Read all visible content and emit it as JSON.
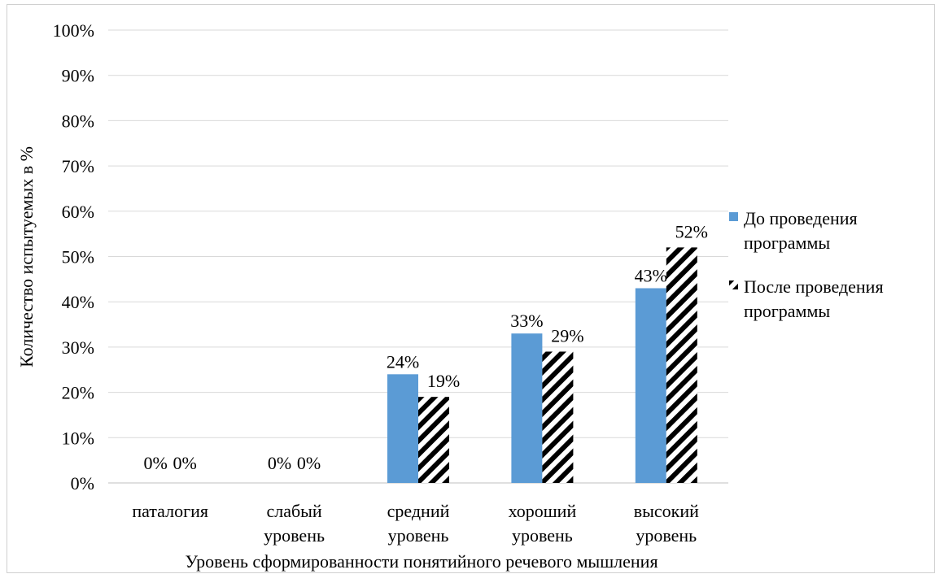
{
  "chart_data": {
    "type": "bar",
    "title": "",
    "xlabel": "Уровень сформированности понятийного речевого мышления",
    "ylabel": "Количество испытуемых в %",
    "categories": [
      [
        "паталогия"
      ],
      [
        "слабый",
        "уровень"
      ],
      [
        "средний",
        "уровень"
      ],
      [
        "хороший",
        "уровень"
      ],
      [
        "высокий",
        "уровень"
      ]
    ],
    "series": [
      {
        "name": "До проведения программы",
        "name_lines": [
          "До проведения",
          "программы"
        ],
        "values": [
          0,
          0,
          24,
          33,
          43
        ],
        "labels": [
          "0%",
          "0%",
          "24%",
          "33%",
          "43%"
        ],
        "color": "#5b9bd5",
        "fill": "solid"
      },
      {
        "name": "После проведения программы",
        "name_lines": [
          "После проведения",
          "программы"
        ],
        "values": [
          0,
          0,
          19,
          29,
          52
        ],
        "labels": [
          "0%",
          "0%",
          "19%",
          "29%",
          "52%"
        ],
        "color": "#000000",
        "fill": "wide-downward-diagonal-stripes"
      }
    ],
    "y_ticks": [
      "0%",
      "10%",
      "20%",
      "30%",
      "40%",
      "50%",
      "60%",
      "70%",
      "80%",
      "90%",
      "100%"
    ],
    "ylim": [
      0,
      100
    ],
    "grid": true,
    "legend": "right"
  }
}
